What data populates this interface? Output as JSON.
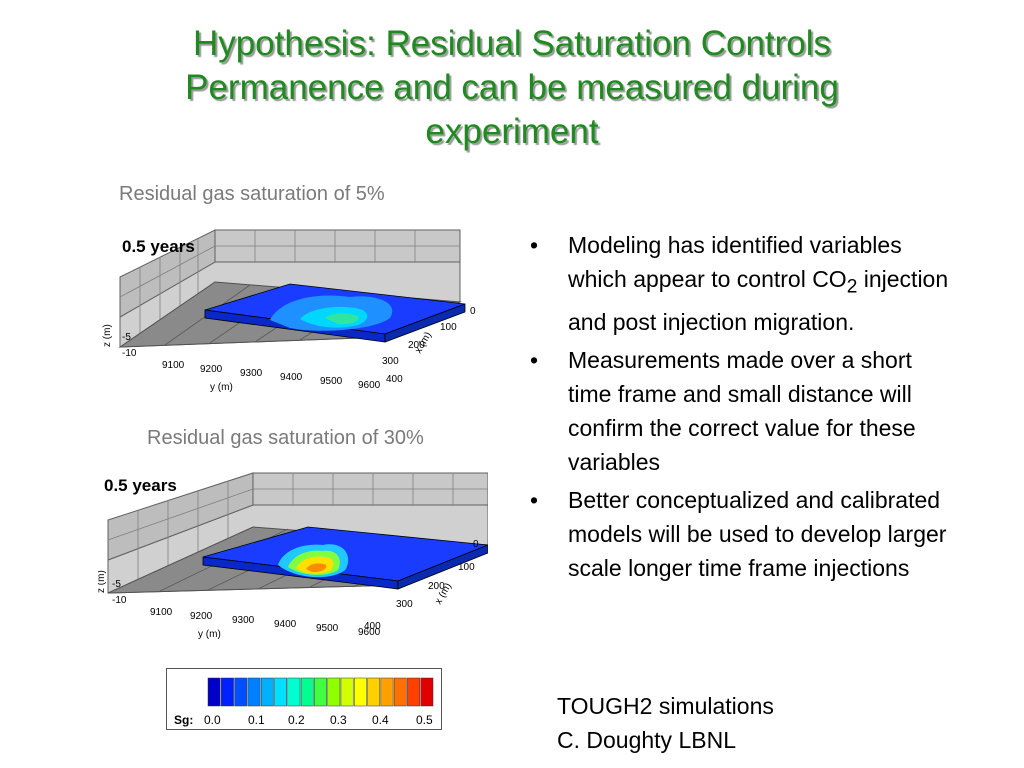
{
  "slide": {
    "title_lines": [
      "Hypothesis: Residual Saturation Controls",
      "Permanence and can be measured during",
      "experiment"
    ],
    "caption_top": "Residual gas saturation of 5%",
    "caption_bottom": "Residual gas saturation of 30%",
    "bullets": [
      {
        "pre": "Modeling has identified variables which appear to control CO",
        "sub": "2",
        "post": " injection and post injection migration."
      },
      {
        "pre": "Measurements made over a short time frame and small distance will confirm the correct value for these variables",
        "sub": "",
        "post": ""
      },
      {
        "pre": "Better conceptualized and calibrated models will be used to develop larger scale longer time frame injections",
        "sub": "",
        "post": ""
      }
    ],
    "bullet_glyph": "•",
    "credits": [
      "TOUGH2 simulations",
      "C. Doughty LBNL"
    ]
  },
  "plots": {
    "top": {
      "time_label": "0.5 years",
      "z_label": "z (m)",
      "z_ticks": [
        "-5",
        "-10"
      ],
      "y_label": "y (m)",
      "y_ticks": [
        "9100",
        "9200",
        "9300",
        "9400",
        "9500",
        "9600"
      ],
      "x_label": "x (m)",
      "x_ticks": [
        "0",
        "100",
        "200",
        "300",
        "400"
      ]
    },
    "bottom": {
      "time_label": "0.5 years",
      "z_label": "z (m)",
      "z_ticks": [
        "-5",
        "-10"
      ],
      "y_label": "y (m)",
      "y_ticks": [
        "9100",
        "9200",
        "9300",
        "9400",
        "9500",
        "9600"
      ],
      "x_label": "x (m)",
      "x_ticks": [
        "0",
        "100",
        "200",
        "300",
        "400"
      ]
    }
  },
  "colorbar": {
    "label": "Sg:",
    "ticks": [
      "0.0",
      "0.1",
      "0.2",
      "0.3",
      "0.4",
      "0.5"
    ],
    "colors": [
      "#0000c8",
      "#0020ff",
      "#0050ff",
      "#0080ff",
      "#00b0ff",
      "#00e0ff",
      "#00ffd0",
      "#00ff90",
      "#40ff40",
      "#90ff00",
      "#d0ff00",
      "#ffff00",
      "#ffd000",
      "#ffa000",
      "#ff7000",
      "#ff4000",
      "#e00000"
    ]
  }
}
